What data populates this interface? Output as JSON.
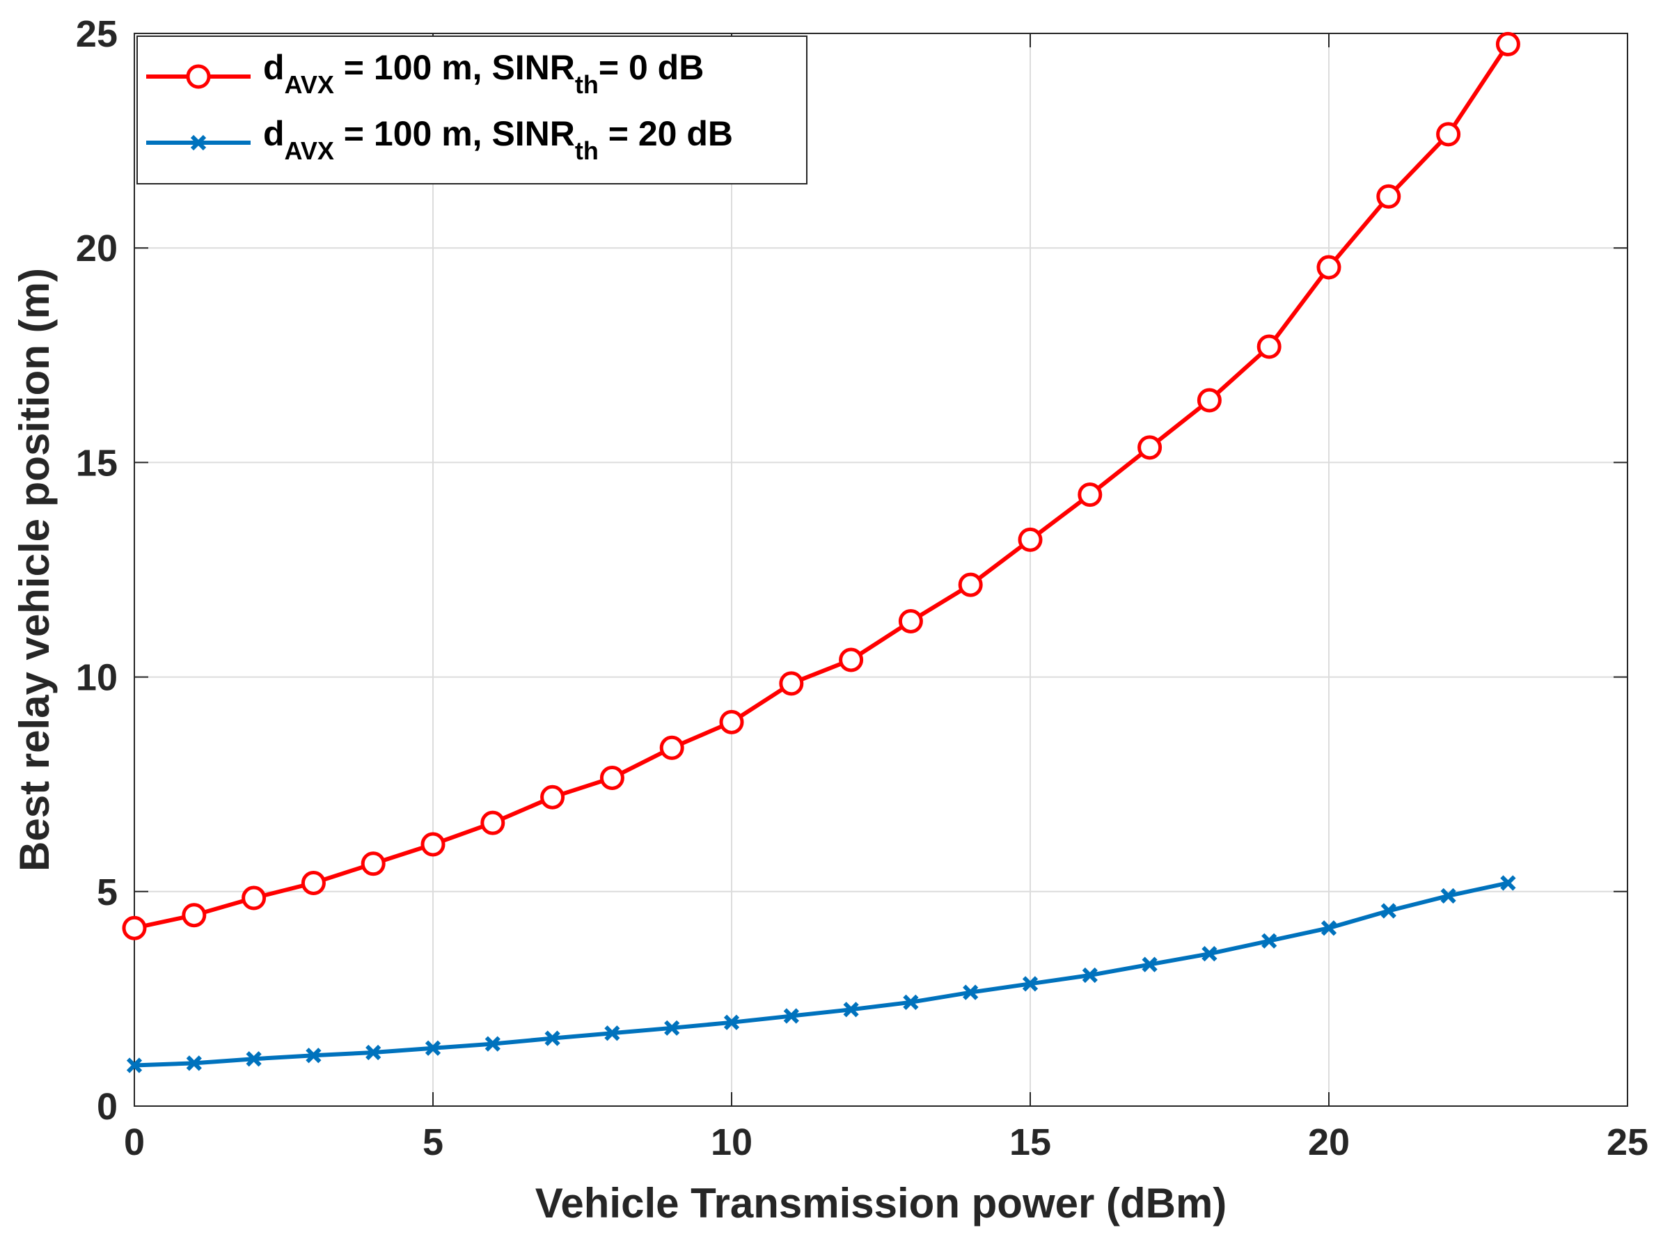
{
  "chart_data": {
    "type": "line",
    "title": "",
    "xlabel": "Vehicle Transmission power (dBm)",
    "ylabel": "Best relay vehicle position  (m)",
    "xlim": [
      0,
      25
    ],
    "ylim": [
      0,
      25
    ],
    "xticks": [
      0,
      5,
      10,
      15,
      20,
      25
    ],
    "yticks": [
      0,
      5,
      10,
      15,
      20,
      25
    ],
    "xtick_labels": [
      "0",
      "5",
      "10",
      "15",
      "20",
      "25"
    ],
    "ytick_labels": [
      "0",
      "5",
      "10",
      "15",
      "20",
      "25"
    ],
    "grid": true,
    "legend_position": "top-left",
    "x": [
      0,
      1,
      2,
      3,
      4,
      5,
      6,
      7,
      8,
      9,
      10,
      11,
      12,
      13,
      14,
      15,
      16,
      17,
      18,
      19,
      20,
      21,
      22,
      23
    ],
    "series": [
      {
        "name": "dAVX = 100 m, SINRth= 0 dB",
        "legend": {
          "d": "d",
          "d_sub": "AVX",
          "mid": " = 100 m, SINR",
          "sinr_sub": "th",
          "end": "= 0 dB"
        },
        "color": "#ff0000",
        "marker": "circle",
        "values": [
          4.15,
          4.45,
          4.85,
          5.2,
          5.65,
          6.1,
          6.6,
          7.2,
          7.65,
          8.35,
          8.95,
          9.85,
          10.4,
          11.3,
          12.15,
          13.2,
          14.25,
          15.35,
          16.45,
          17.7,
          19.55,
          21.2,
          22.65,
          24.75
        ]
      },
      {
        "name": "dAVX = 100 m, SINRth = 20 dB",
        "legend": {
          "d": "d",
          "d_sub": "AVX",
          "mid": " = 100 m, SINR",
          "sinr_sub": "th",
          "end": " = 20 dB"
        },
        "color": "#0072bd",
        "marker": "x",
        "values": [
          0.95,
          1.0,
          1.1,
          1.18,
          1.25,
          1.35,
          1.45,
          1.58,
          1.7,
          1.82,
          1.95,
          2.1,
          2.25,
          2.42,
          2.65,
          2.85,
          3.05,
          3.3,
          3.55,
          3.85,
          4.15,
          4.55,
          4.9,
          5.2
        ]
      }
    ]
  }
}
